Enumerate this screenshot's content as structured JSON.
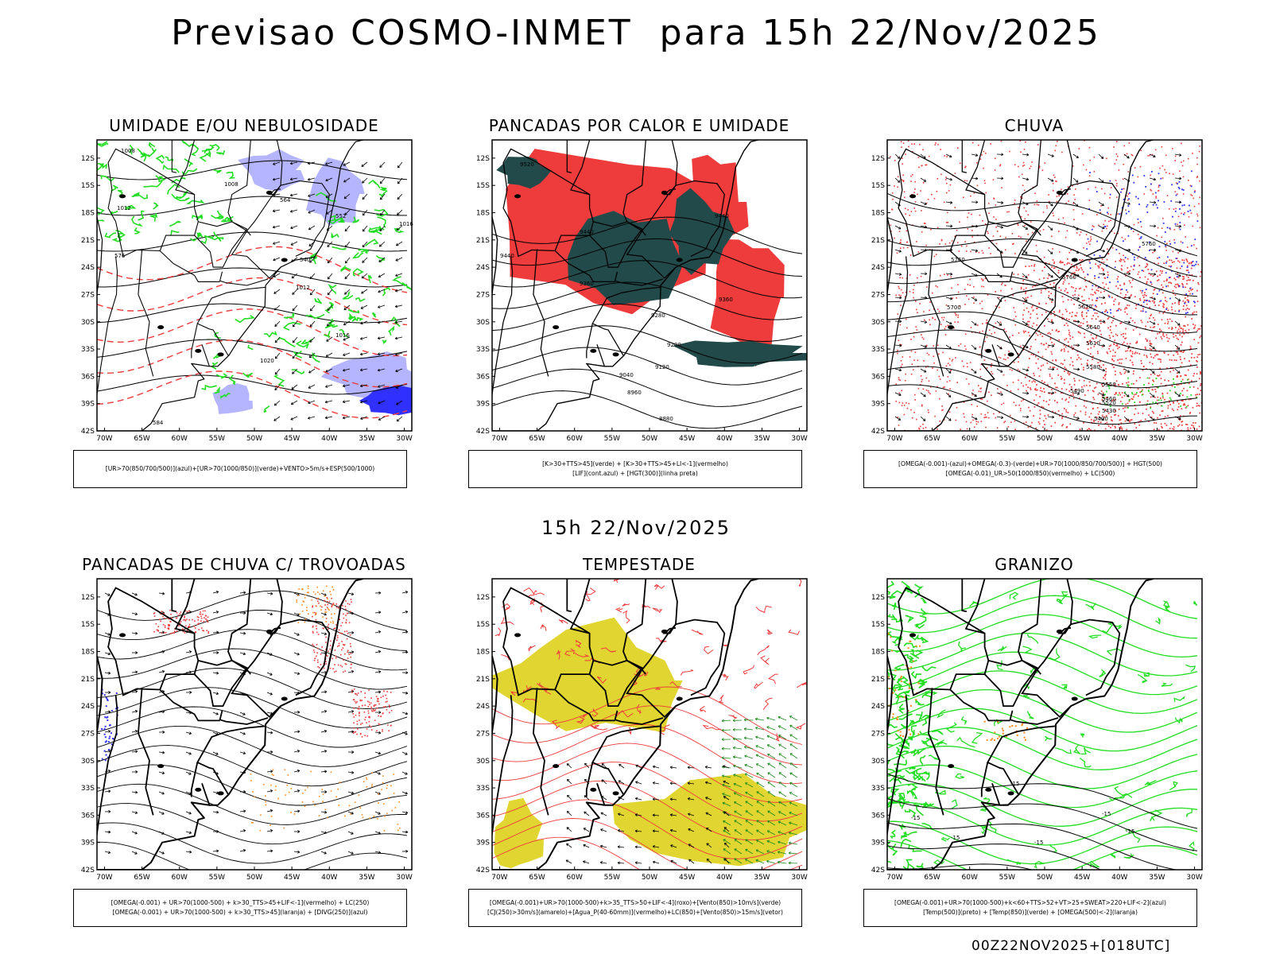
{
  "main_title": "Previsao COSMO-INMET  para 15h 22/Nov/2025",
  "mid_title": "15h 22/Nov/2025",
  "footer": "00Z22NOV2025+[018UTC]",
  "axes": {
    "lat_labels": [
      "12S",
      "15S",
      "18S",
      "21S",
      "24S",
      "27S",
      "30S",
      "33S",
      "36S",
      "39S",
      "42S"
    ],
    "lon_labels": [
      "70W",
      "65W",
      "60W",
      "55W",
      "50W",
      "45W",
      "40W",
      "35W",
      "30W"
    ]
  },
  "colors": {
    "green": "#22dd22",
    "red": "#ee3b3b",
    "darkteal": "#224a4a",
    "lavender": "#b4b4ff",
    "blue": "#3030ff",
    "yellow": "#e1d531",
    "orange": "#ff8a1a"
  },
  "panels": [
    {
      "title": "UMIDADE E/OU NEBULOSIDADE",
      "legend": [
        "[UR>70(850/700/500)](azul)+[UR>70(1000/850)](verde)+VENTO>5m/s+ESP(500/1000)"
      ],
      "contour_labels": [
        "1008",
        "1008",
        "1012",
        "1012",
        "1016",
        "1016",
        "1020",
        "540",
        "552",
        "564",
        "576",
        "584"
      ]
    },
    {
      "title": "PANCADAS POR CALOR E UMIDADE",
      "legend": [
        "[K>30+TTS>45](verde) + [K>30+TTS>45+LI<-1](vermelho)",
        "[LIF](cont.azul) + [HGT(300)](linha preta)"
      ],
      "contour_labels": [
        "9520",
        "9440",
        "9440",
        "9440",
        "9360",
        "9360",
        "9280",
        "9200",
        "9120",
        "9040",
        "8960",
        "8880"
      ]
    },
    {
      "title": "CHUVA",
      "legend": [
        "[OMEGA(-0.001)-(azul)+OMEGA(-0.3)-(verde)+UR>70(1000/850/700/500)] + HGT(500)",
        "[OMEGA(-0.01)_UR>50(1000/850)(vermelho) + LC(500)"
      ],
      "contour_labels": [
        "5760",
        "5760",
        "5760",
        "5700",
        "5670",
        "5640",
        "5610",
        "5580",
        "5550",
        "5520",
        "5490",
        "5460",
        "5430",
        "5400"
      ]
    },
    {
      "title": "PANCADAS DE CHUVA C/ TROVOADAS",
      "legend": [
        "[OMEGA(-0.001) + UR>70(1000-500) + k>30_TTS>45+LIF<-1](vermelho) + LC(250)",
        "[OMEGA(-0.001) + UR>70(1000-500) + k>30_TTS>45](laranja) + [DIVG(250)](azul)"
      ],
      "contour_labels": []
    },
    {
      "title": "TEMPESTADE",
      "legend": [
        "[OMEGA(-0.001)+UR>70(1000-500)+k>35_TTS>50+LIF<-4](roxo)+[Vento(850)>10m/s](verde)",
        "[CJ(250)>30m/s](amarelo)+[Agua_P(40-60mm)](vermelho)+LC(850)+[Vento(850)>15m/s](vetor)"
      ],
      "contour_labels": []
    },
    {
      "title": "GRANIZO",
      "legend": [
        "[OMEGA(-0.001)+UR>70(1000-500)+k<60+TTS>52+VT>25+SWEAT>220+LIF<-2](azul)",
        "[Temp(500)](preto) + [Temp(850)](verde) + [OMEGA(500)<-2](laranja)"
      ],
      "contour_labels": [
        "-15",
        "-15",
        "-15",
        "-15",
        "-15",
        "-15"
      ]
    }
  ]
}
